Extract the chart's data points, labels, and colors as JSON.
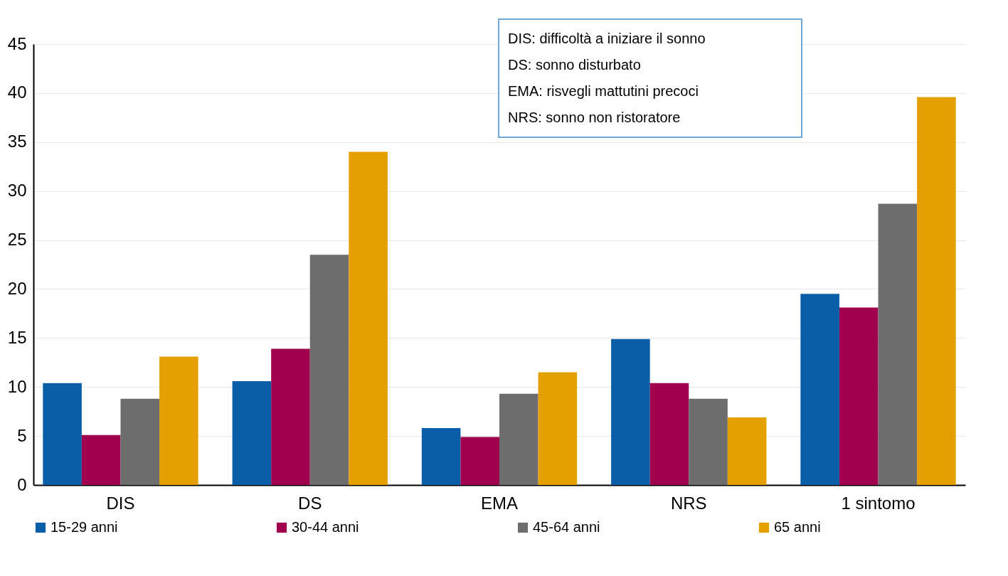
{
  "chart_data": {
    "type": "bar",
    "categories": [
      "DIS",
      "DS",
      "EMA",
      "NRS",
      "1 sintomo"
    ],
    "series": [
      {
        "name": "15-29 anni",
        "color": "#0a5ea8",
        "values": [
          10.4,
          10.6,
          5.8,
          14.9,
          19.5
        ]
      },
      {
        "name": "30-44 anni",
        "color": "#a0004e",
        "values": [
          5.1,
          13.9,
          4.9,
          10.4,
          18.1
        ]
      },
      {
        "name": "45-64 anni",
        "color": "#6d6d6d",
        "values": [
          8.8,
          23.5,
          9.3,
          8.8,
          28.7
        ]
      },
      {
        "name": "65 anni",
        "color": "#e3a000",
        "values": [
          13.1,
          34.0,
          11.5,
          6.9,
          39.6
        ]
      }
    ],
    "ylim": [
      0,
      45
    ],
    "yticks": [
      0,
      5,
      10,
      15,
      20,
      25,
      30,
      35,
      40,
      45
    ],
    "grid": "y",
    "legend": "bottom",
    "annotations": [
      "DIS: difficoltà a iniziare il sonno",
      "DS: sonno disturbato",
      "EMA: risvegli mattutini precoci",
      "NRS: sonno non ristoratore"
    ]
  }
}
